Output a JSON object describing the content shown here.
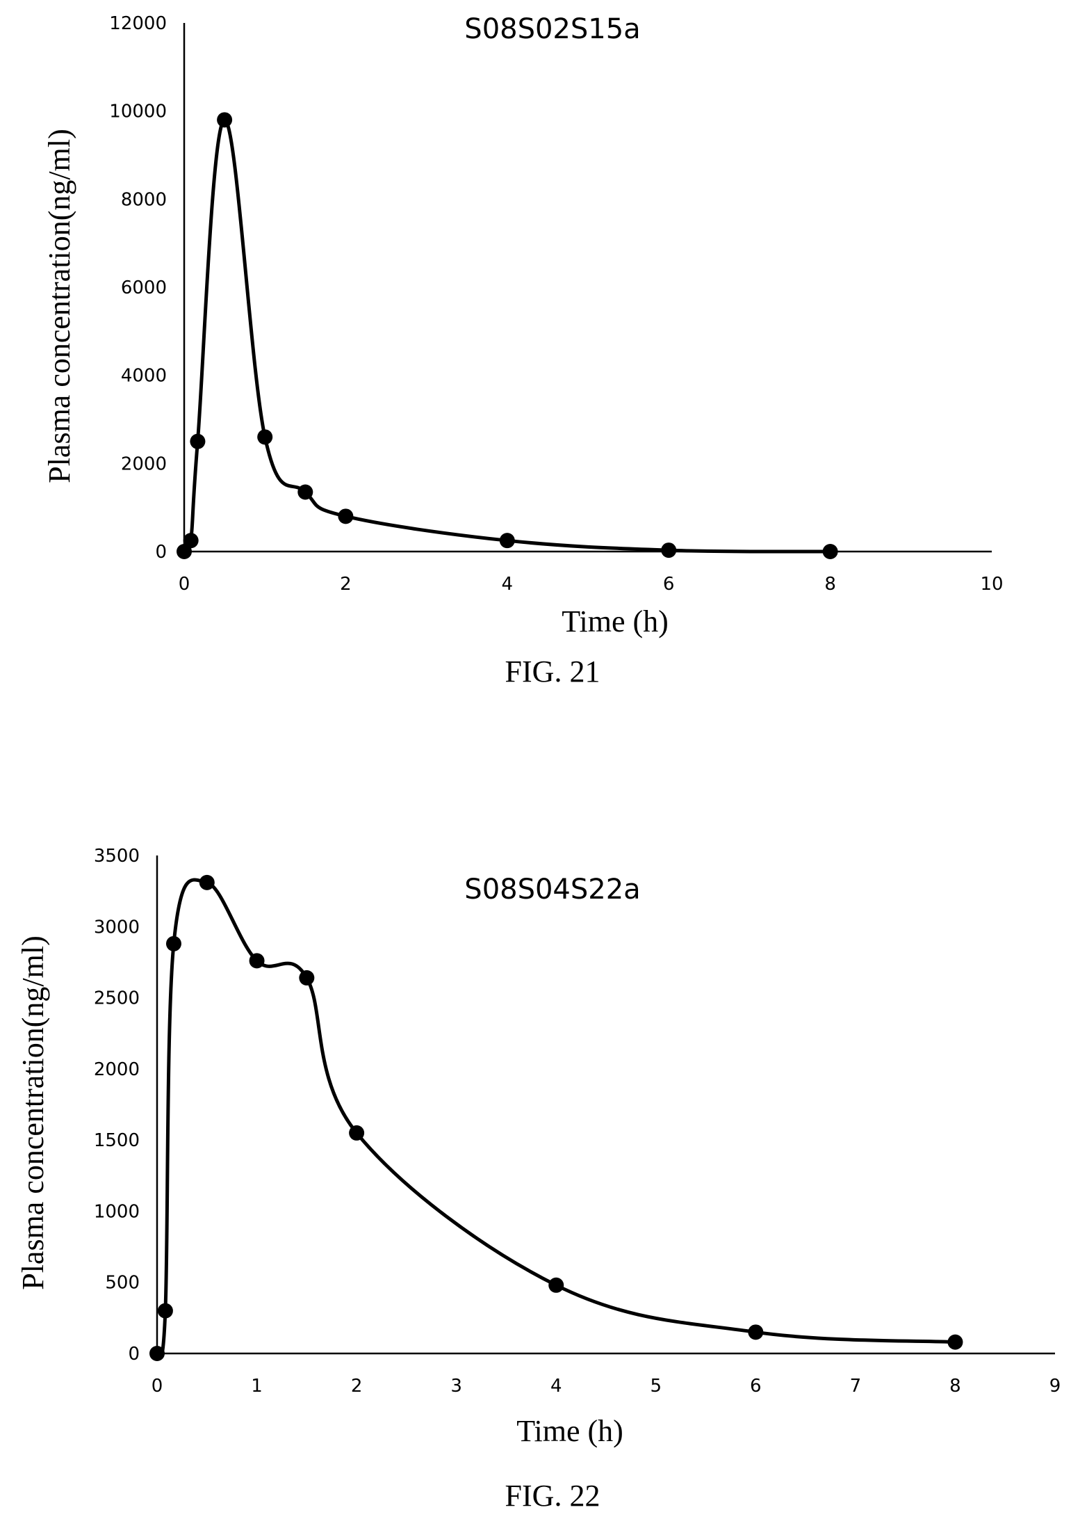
{
  "chart_data": [
    {
      "type": "line",
      "title": "S08S02S15a",
      "xlabel": "Time (h)",
      "ylabel": "Plasma concentration(ng/ml)",
      "caption": "FIG. 21",
      "xlim": [
        0,
        10
      ],
      "ylim": [
        0,
        12000
      ],
      "xticks": [
        0,
        2,
        4,
        6,
        8,
        10
      ],
      "yticks": [
        0,
        2000,
        4000,
        6000,
        8000,
        10000,
        12000
      ],
      "smooth": true,
      "grid": false,
      "series": [
        {
          "x": [
            0,
            0.083,
            0.167,
            0.5,
            1,
            1.5,
            2,
            4,
            6,
            8
          ],
          "y": [
            0,
            250,
            2500,
            9800,
            2600,
            1350,
            800,
            250,
            30,
            0
          ]
        }
      ]
    },
    {
      "type": "line",
      "title": "S08S04S22a",
      "xlabel": "Time (h)",
      "ylabel": "Plasma concentration(ng/ml)",
      "caption": "FIG. 22",
      "xlim": [
        0,
        9
      ],
      "ylim": [
        0,
        3500
      ],
      "xticks": [
        0,
        1,
        2,
        3,
        4,
        5,
        6,
        7,
        8,
        9
      ],
      "yticks": [
        0,
        500,
        1000,
        1500,
        2000,
        2500,
        3000,
        3500
      ],
      "smooth": true,
      "grid": false,
      "series": [
        {
          "x": [
            0,
            0.083,
            0.167,
            0.5,
            1,
            1.5,
            2,
            4,
            6,
            8
          ],
          "y": [
            0,
            300,
            2880,
            3310,
            2760,
            2640,
            1550,
            480,
            150,
            80
          ]
        }
      ]
    }
  ]
}
